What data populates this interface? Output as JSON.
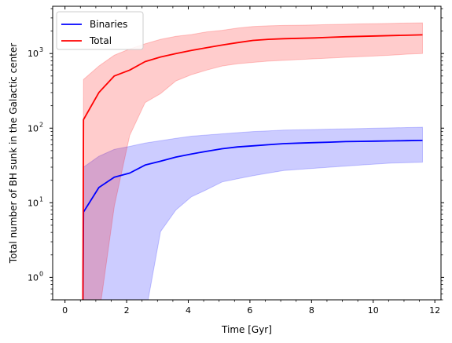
{
  "chart_data": {
    "type": "line",
    "xlabel": "Time [Gyr]",
    "ylabel": "Total number of BH sunk in the Galactic center",
    "xlim": [
      -0.4,
      12.2
    ],
    "ylim": [
      0.5,
      4300
    ],
    "yscale": "log",
    "grid": false,
    "legend": "top-left",
    "x_ticks": [
      0,
      2,
      4,
      6,
      8,
      10,
      12
    ],
    "x_tick_labels": [
      "0",
      "2",
      "4",
      "6",
      "8",
      "10",
      "12"
    ],
    "y_ticks": [
      1,
      10,
      100,
      1000
    ],
    "y_tick_labels": [
      "10",
      "10",
      "10",
      "10"
    ],
    "y_tick_exponents": [
      "0",
      "1",
      "2",
      "3"
    ],
    "series": [
      {
        "name": "Binaries",
        "color": "#0000ff",
        "band_color": "#0000ff",
        "x": [
          0.58,
          0.6,
          1.1,
          1.6,
          2.1,
          2.6,
          3.1,
          3.6,
          4.1,
          4.6,
          5.1,
          5.6,
          6.1,
          6.6,
          7.1,
          7.6,
          8.1,
          8.6,
          9.1,
          9.6,
          10.1,
          10.6,
          11.1,
          11.6
        ],
        "values": [
          0.3,
          7.5,
          16,
          22,
          25,
          32,
          36,
          41,
          45,
          49,
          53,
          56,
          58,
          60,
          62,
          63,
          64,
          65,
          66,
          66.5,
          67,
          67.5,
          68,
          68.5
        ],
        "band_upper": [
          0.3,
          30,
          42,
          52,
          57,
          63,
          68,
          73,
          78,
          81,
          84,
          87,
          90,
          92,
          94,
          95,
          96,
          97,
          98,
          99,
          100,
          101,
          102,
          103
        ],
        "band_lower": [
          0.3,
          0.3,
          0.3,
          0.3,
          0.3,
          0.3,
          4.1,
          8,
          12,
          15,
          19,
          21,
          23,
          25,
          27,
          28,
          29,
          30,
          31,
          32,
          33,
          34,
          34.5,
          35
        ]
      },
      {
        "name": "Total",
        "color": "#ff0000",
        "band_color": "#ff0000",
        "x": [
          0.58,
          0.6,
          1.1,
          1.6,
          2.1,
          2.6,
          3.1,
          3.6,
          4.1,
          4.6,
          5.1,
          5.6,
          6.1,
          6.6,
          7.1,
          7.6,
          8.1,
          8.6,
          9.1,
          9.6,
          10.1,
          10.6,
          11.1,
          11.6
        ],
        "values": [
          0.3,
          130,
          300,
          500,
          600,
          780,
          900,
          1000,
          1100,
          1200,
          1300,
          1400,
          1500,
          1550,
          1580,
          1600,
          1620,
          1650,
          1680,
          1700,
          1720,
          1740,
          1760,
          1780
        ],
        "band_upper": [
          0.3,
          450,
          680,
          950,
          1150,
          1350,
          1550,
          1700,
          1800,
          1950,
          2050,
          2200,
          2300,
          2350,
          2380,
          2400,
          2420,
          2450,
          2470,
          2500,
          2520,
          2540,
          2560,
          2580
        ],
        "band_lower": [
          0.3,
          0.3,
          0.3,
          9,
          80,
          220,
          290,
          430,
          520,
          600,
          680,
          730,
          760,
          790,
          810,
          830,
          850,
          870,
          890,
          910,
          930,
          950,
          980,
          1000
        ]
      }
    ]
  }
}
